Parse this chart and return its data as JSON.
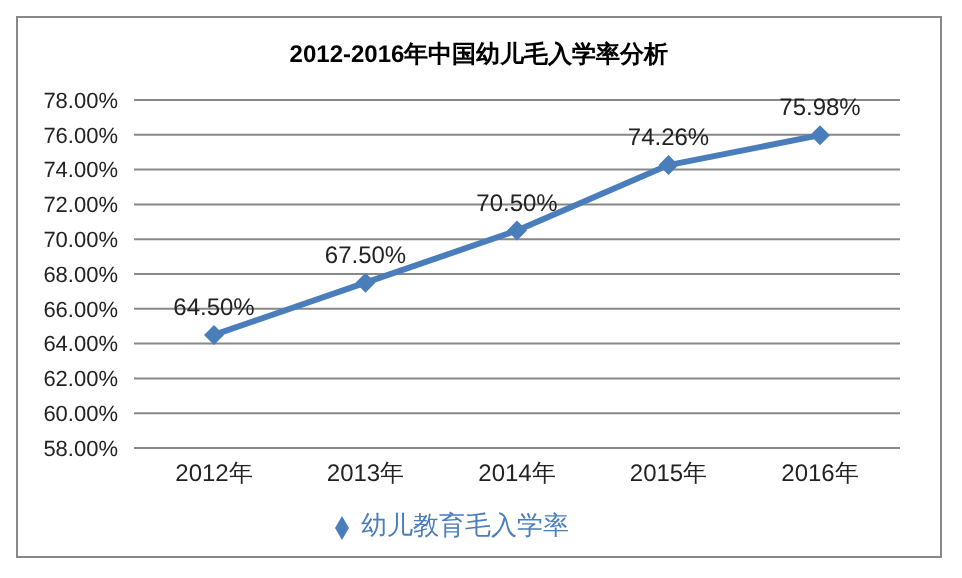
{
  "chart_data": {
    "type": "line",
    "title": "2012-2016年中国幼儿毛入学率分析",
    "categories": [
      "2012年",
      "2013年",
      "2014年",
      "2015年",
      "2016年"
    ],
    "series": [
      {
        "name": "幼儿教育毛入学率",
        "color": "#4a7ebb",
        "values": [
          64.5,
          67.5,
          70.5,
          74.26,
          75.98
        ],
        "value_labels": [
          "64.50%",
          "67.50%",
          "70.50%",
          "74.26%",
          "75.98%"
        ]
      }
    ],
    "ylim": [
      58,
      78
    ],
    "yticks": [
      {
        "value": 58,
        "label": "58.00%"
      },
      {
        "value": 60,
        "label": "60.00%"
      },
      {
        "value": 62,
        "label": "62.00%"
      },
      {
        "value": 64,
        "label": "64.00%"
      },
      {
        "value": 66,
        "label": "66.00%"
      },
      {
        "value": 68,
        "label": "68.00%"
      },
      {
        "value": 70,
        "label": "70.00%"
      },
      {
        "value": 72,
        "label": "72.00%"
      },
      {
        "value": 74,
        "label": "74.00%"
      },
      {
        "value": 76,
        "label": "76.00%"
      },
      {
        "value": 78,
        "label": "78.00%"
      }
    ],
    "grid": "y",
    "legend": "bottom",
    "marker": "diamond",
    "line_style": "solid"
  }
}
